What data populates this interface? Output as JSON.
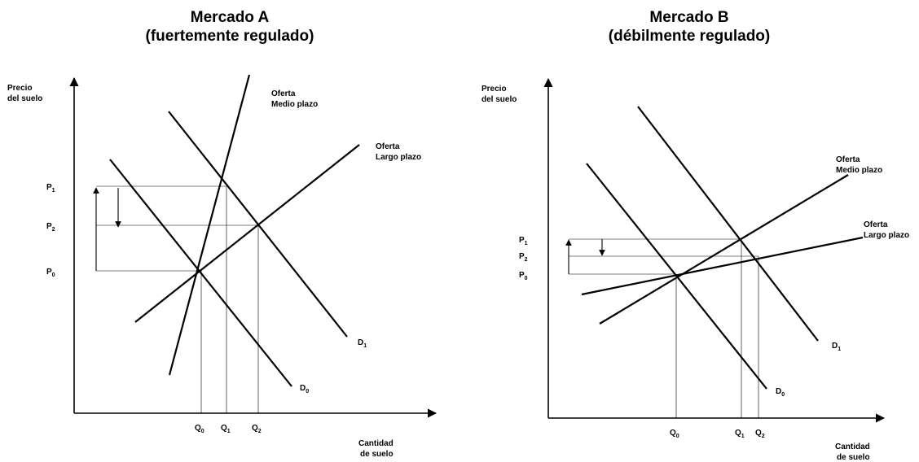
{
  "market_a": {
    "title_line1": "Mercado A",
    "title_line2": "(fuertemente regulado)",
    "y_axis_line1": "Precio",
    "y_axis_line2": "del suelo",
    "x_axis_line1": "Cantidad",
    "x_axis_line2": "de suelo",
    "supply_medium_line1": "Oferta",
    "supply_medium_line2": "Medio plazo",
    "supply_long_line1": "Oferta",
    "supply_long_line2": "Largo plazo",
    "demand0": {
      "main": "D",
      "sub": "0"
    },
    "demand1": {
      "main": "D",
      "sub": "1"
    },
    "p1": {
      "main": "P",
      "sub": "1"
    },
    "p2": {
      "main": "P",
      "sub": "2"
    },
    "p0": {
      "main": "P",
      "sub": "0"
    },
    "q0": {
      "main": "Q",
      "sub": "0"
    },
    "q1": {
      "main": "Q",
      "sub": "1"
    },
    "q2": {
      "main": "Q",
      "sub": "2"
    }
  },
  "market_b": {
    "title_line1": "Mercado B",
    "title_line2": "(débilmente regulado)",
    "y_axis_line1": "Precio",
    "y_axis_line2": "del suelo",
    "x_axis_line1": "Cantidad",
    "x_axis_line2": "de suelo",
    "supply_medium_line1": "Oferta",
    "supply_medium_line2": "Medio plazo",
    "supply_long_line1": "Oferta",
    "supply_long_line2": "Largo plazo",
    "demand0": {
      "main": "D",
      "sub": "0"
    },
    "demand1": {
      "main": "D",
      "sub": "1"
    },
    "p1": {
      "main": "P",
      "sub": "1"
    },
    "p2": {
      "main": "P",
      "sub": "2"
    },
    "p0": {
      "main": "P",
      "sub": "0"
    },
    "q0": {
      "main": "Q",
      "sub": "0"
    },
    "q1": {
      "main": "Q",
      "sub": "1"
    },
    "q2": {
      "main": "Q",
      "sub": "2"
    }
  }
}
